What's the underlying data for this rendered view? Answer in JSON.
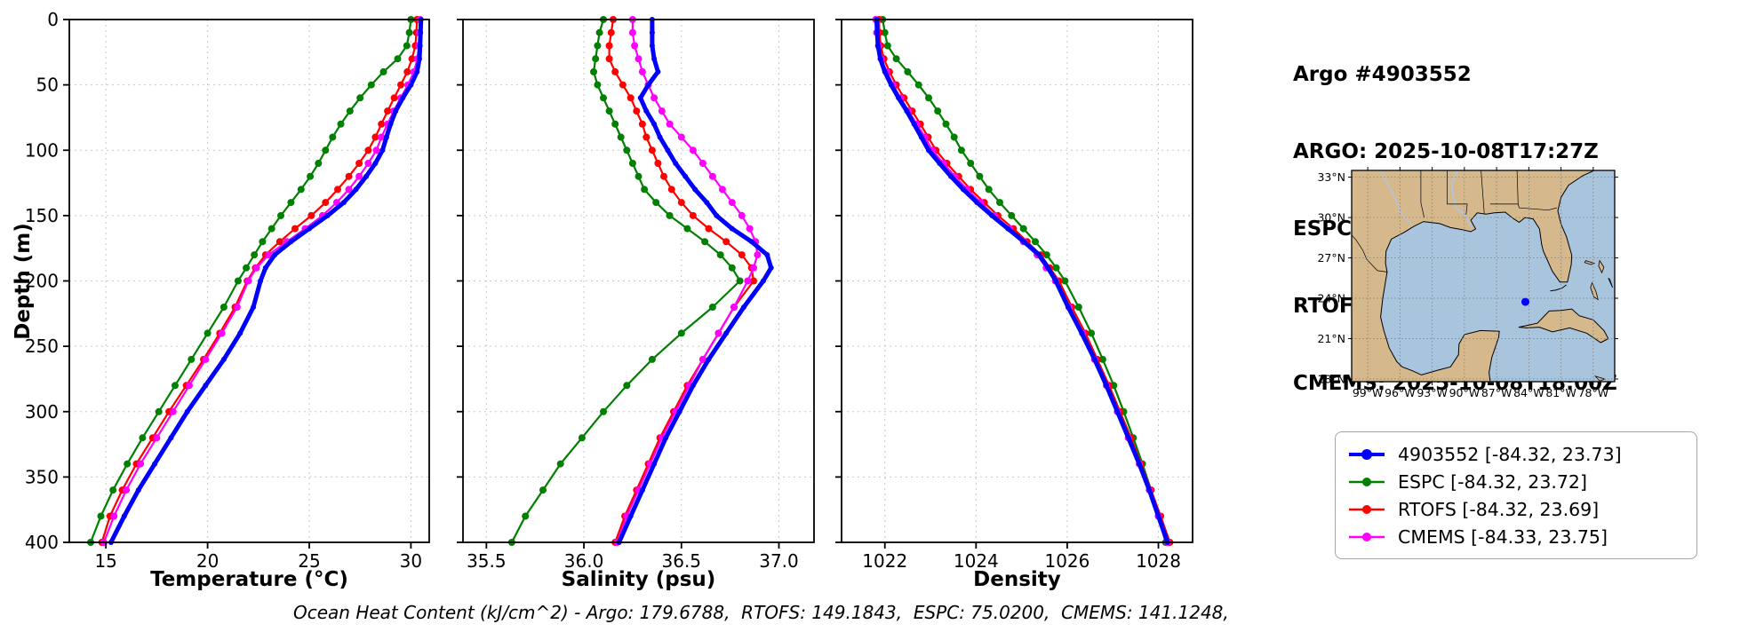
{
  "header": {
    "lines": [
      "Argo #4903552",
      "ARGO: 2025-10-08T17:27Z",
      "ESPC : 2025-10-08T18:00Z",
      "RTOFS: 2025-10-08T18:00Z",
      "CMEMS: 2025-10-08T18:00Z"
    ]
  },
  "chart_data": {
    "type": "line",
    "ylabel": "Depth (m)",
    "ylim": [
      0,
      400
    ],
    "y_ticks": [
      "0",
      "50",
      "100",
      "150",
      "200",
      "250",
      "300",
      "350",
      "400"
    ],
    "depths": [
      0,
      10,
      20,
      30,
      40,
      50,
      60,
      70,
      80,
      90,
      100,
      110,
      120,
      130,
      140,
      150,
      160,
      170,
      180,
      190,
      200,
      220,
      240,
      260,
      280,
      300,
      320,
      340,
      360,
      380,
      400
    ],
    "panels": [
      {
        "key": "temperature",
        "xlabel": "Temperature (°C)",
        "xlim": [
          13.2,
          30.9
        ],
        "x_ticks": [
          "15",
          "20",
          "25",
          "30"
        ]
      },
      {
        "key": "salinity",
        "xlabel": "Salinity (psu)",
        "xlim": [
          35.38,
          37.18
        ],
        "x_ticks": [
          "35.5",
          "36.0",
          "36.5",
          "37.0"
        ]
      },
      {
        "key": "density",
        "xlabel": "Density",
        "xlim": [
          1021.05,
          1028.75
        ],
        "x_ticks": [
          "1022",
          "1024",
          "1026",
          "1028"
        ]
      }
    ],
    "series": [
      {
        "name": "4903552",
        "color": "#0000ff",
        "linewidth": 5,
        "marker_r": 3,
        "temperature": [
          30.5,
          30.47,
          30.45,
          30.42,
          30.3,
          30.0,
          29.6,
          29.25,
          29.0,
          28.8,
          28.6,
          28.25,
          27.8,
          27.3,
          26.7,
          25.9,
          25.0,
          24.1,
          23.3,
          22.85,
          22.6,
          22.25,
          21.6,
          20.8,
          19.9,
          19.0,
          18.2,
          17.4,
          16.6,
          15.9,
          15.25
        ],
        "salinity": [
          36.35,
          36.35,
          36.35,
          36.36,
          36.38,
          36.33,
          36.29,
          36.32,
          36.36,
          36.39,
          36.43,
          36.47,
          36.52,
          36.57,
          36.63,
          36.68,
          36.76,
          36.86,
          36.94,
          36.96,
          36.92,
          36.82,
          36.73,
          36.64,
          36.56,
          36.49,
          36.42,
          36.36,
          36.3,
          36.24,
          36.18
        ],
        "density": [
          1021.82,
          1021.83,
          1021.85,
          1021.9,
          1022.0,
          1022.14,
          1022.3,
          1022.48,
          1022.64,
          1022.8,
          1022.96,
          1023.2,
          1023.45,
          1023.72,
          1024.02,
          1024.35,
          1024.7,
          1025.05,
          1025.38,
          1025.58,
          1025.75,
          1026.02,
          1026.32,
          1026.6,
          1026.86,
          1027.1,
          1027.34,
          1027.58,
          1027.8,
          1028.0,
          1028.2
        ]
      },
      {
        "name": "ESPC",
        "color": "#008000",
        "linewidth": 2.2,
        "marker_r": 4,
        "temperature": [
          30.0,
          29.92,
          29.8,
          29.35,
          28.65,
          28.05,
          27.5,
          27.0,
          26.55,
          26.15,
          25.8,
          25.45,
          25.05,
          24.6,
          24.1,
          23.6,
          23.15,
          22.7,
          22.3,
          21.9,
          21.5,
          20.8,
          20.0,
          19.2,
          18.4,
          17.6,
          16.8,
          16.05,
          15.35,
          14.75,
          14.25
        ],
        "salinity": [
          36.1,
          36.08,
          36.07,
          36.06,
          36.05,
          36.07,
          36.1,
          36.13,
          36.16,
          36.19,
          36.22,
          36.25,
          36.28,
          36.31,
          36.37,
          36.44,
          36.53,
          36.62,
          36.7,
          36.76,
          36.8,
          36.66,
          36.5,
          36.35,
          36.22,
          36.1,
          35.99,
          35.88,
          35.79,
          35.7,
          35.63
        ],
        "density": [
          1021.95,
          1022.0,
          1022.06,
          1022.25,
          1022.5,
          1022.74,
          1022.96,
          1023.16,
          1023.34,
          1023.52,
          1023.68,
          1023.88,
          1024.08,
          1024.28,
          1024.52,
          1024.78,
          1025.04,
          1025.3,
          1025.55,
          1025.76,
          1025.95,
          1026.25,
          1026.53,
          1026.78,
          1027.02,
          1027.24,
          1027.45,
          1027.65,
          1027.84,
          1028.0,
          1028.16
        ]
      },
      {
        "name": "RTOFS",
        "color": "#ff0000",
        "linewidth": 2.2,
        "marker_r": 4,
        "temperature": [
          30.3,
          30.27,
          30.22,
          30.05,
          29.82,
          29.5,
          29.18,
          28.85,
          28.55,
          28.25,
          27.9,
          27.45,
          26.95,
          26.4,
          25.8,
          25.1,
          24.3,
          23.55,
          22.85,
          22.35,
          21.95,
          21.35,
          20.6,
          19.8,
          18.95,
          18.1,
          17.3,
          16.5,
          15.8,
          15.2,
          14.8
        ],
        "salinity": [
          36.15,
          36.14,
          36.13,
          36.13,
          36.16,
          36.2,
          36.24,
          36.27,
          36.3,
          36.32,
          36.35,
          36.38,
          36.41,
          36.45,
          36.5,
          36.56,
          36.64,
          36.73,
          36.81,
          36.86,
          36.87,
          36.77,
          36.69,
          36.61,
          36.53,
          36.46,
          36.39,
          36.33,
          36.27,
          36.21,
          36.16
        ],
        "density": [
          1021.87,
          1021.88,
          1021.91,
          1021.98,
          1022.1,
          1022.25,
          1022.42,
          1022.6,
          1022.78,
          1022.95,
          1023.12,
          1023.36,
          1023.62,
          1023.88,
          1024.18,
          1024.48,
          1024.82,
          1025.12,
          1025.42,
          1025.62,
          1025.82,
          1026.1,
          1026.4,
          1026.66,
          1026.92,
          1027.16,
          1027.4,
          1027.62,
          1027.84,
          1028.05,
          1028.25
        ]
      },
      {
        "name": "CMEMS",
        "color": "#ff00ff",
        "linewidth": 2.2,
        "marker_r": 4,
        "temperature": [
          30.45,
          30.42,
          30.38,
          30.32,
          30.15,
          29.85,
          29.5,
          29.15,
          28.85,
          28.55,
          28.3,
          27.9,
          27.45,
          26.95,
          26.35,
          25.65,
          24.8,
          23.9,
          23.0,
          22.4,
          22.0,
          21.45,
          20.7,
          19.9,
          19.1,
          18.3,
          17.5,
          16.7,
          16.0,
          15.4,
          14.9
        ],
        "salinity": [
          36.25,
          36.25,
          36.26,
          36.28,
          36.3,
          36.33,
          36.36,
          36.4,
          36.44,
          36.5,
          36.56,
          36.61,
          36.66,
          36.71,
          36.76,
          36.81,
          36.85,
          36.88,
          36.89,
          36.87,
          36.84,
          36.77,
          36.69,
          36.61,
          36.54,
          36.47,
          36.4,
          36.34,
          36.28,
          36.22,
          36.17
        ],
        "density": [
          1021.8,
          1021.82,
          1021.86,
          1021.92,
          1022.04,
          1022.18,
          1022.34,
          1022.52,
          1022.7,
          1022.88,
          1023.04,
          1023.28,
          1023.54,
          1023.8,
          1024.1,
          1024.4,
          1024.74,
          1025.04,
          1025.34,
          1025.54,
          1025.74,
          1026.04,
          1026.34,
          1026.6,
          1026.86,
          1027.1,
          1027.34,
          1027.58,
          1027.8,
          1028.0,
          1028.2
        ]
      }
    ],
    "footer": "Ocean Heat Content (kJ/cm^2) - Argo: 179.6788,  RTOFS: 149.1843,  ESPC: 75.0200,  CMEMS: 141.1248,"
  },
  "map": {
    "extent": {
      "lon_min": -100.5,
      "lon_max": -76.0,
      "lat_min": 17.8,
      "lat_max": 33.5
    },
    "lat_ticks": [
      "33°N",
      "30°N",
      "27°N",
      "24°N",
      "21°N",
      "18°N"
    ],
    "lon_ticks": [
      "99°W",
      "96°W",
      "93°W",
      "90°W",
      "87°W",
      "84°W",
      "81°W",
      "78°W"
    ],
    "marker": {
      "lon": -84.32,
      "lat": 23.73,
      "color": "#0000ff"
    },
    "land_color": "#d5b98c",
    "water_color": "#a9c4dd",
    "river_color": "#a8c8ec"
  },
  "legend": {
    "items": [
      {
        "label": "4903552 [-84.32, 23.73]",
        "color": "#0000ff",
        "lw": 4,
        "marker_r": 6
      },
      {
        "label": "ESPC [-84.32, 23.72]",
        "color": "#008000",
        "lw": 2.5,
        "marker_r": 5
      },
      {
        "label": "RTOFS [-84.32, 23.69]",
        "color": "#ff0000",
        "lw": 2.5,
        "marker_r": 5
      },
      {
        "label": "CMEMS [-84.33, 23.75]",
        "color": "#ff00ff",
        "lw": 2.5,
        "marker_r": 5
      }
    ]
  }
}
